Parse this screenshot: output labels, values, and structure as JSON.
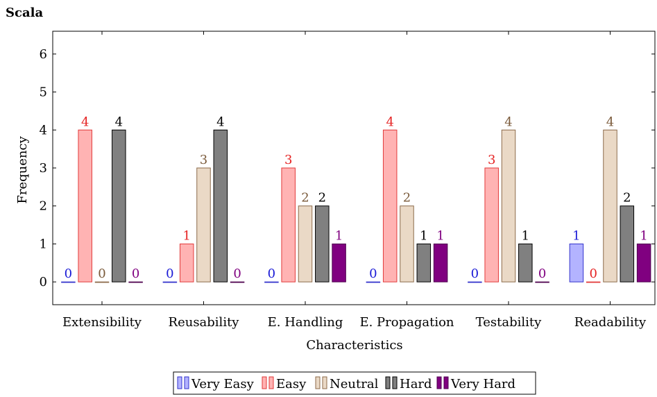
{
  "chart_data": {
    "type": "bar",
    "title": "Scala",
    "xlabel": "Characteristics",
    "ylabel": "Frequency",
    "ylim": [
      -0.6,
      6.6
    ],
    "yticks": [
      0,
      1,
      2,
      3,
      4,
      5,
      6
    ],
    "grid": false,
    "legend_position": "bottom-center",
    "categories": [
      "Extensibility",
      "Reusability",
      "E. Handling",
      "E. Propagation",
      "Testability",
      "Readability"
    ],
    "series": [
      {
        "name": "Very Easy",
        "values": [
          0,
          0,
          0,
          0,
          0,
          1
        ],
        "stroke": "#3333cc",
        "fill": "#b3b3ff",
        "label_color": "#1a1ad6"
      },
      {
        "name": "Easy",
        "values": [
          4,
          1,
          3,
          4,
          3,
          0
        ],
        "stroke": "#e23a3a",
        "fill": "#ffb3b3",
        "label_color": "#e52222"
      },
      {
        "name": "Neutral",
        "values": [
          0,
          3,
          2,
          2,
          4,
          4
        ],
        "stroke": "#8c6a4a",
        "fill": "#ead9c6",
        "label_color": "#7a5a3a"
      },
      {
        "name": "Hard",
        "values": [
          4,
          4,
          2,
          1,
          1,
          2
        ],
        "stroke": "#000000",
        "fill": "#808080",
        "label_color": "#000000"
      },
      {
        "name": "Very Hard",
        "values": [
          0,
          0,
          1,
          1,
          0,
          1
        ],
        "stroke": "#4d004d",
        "fill": "#800080",
        "label_color": "#800080"
      }
    ]
  }
}
